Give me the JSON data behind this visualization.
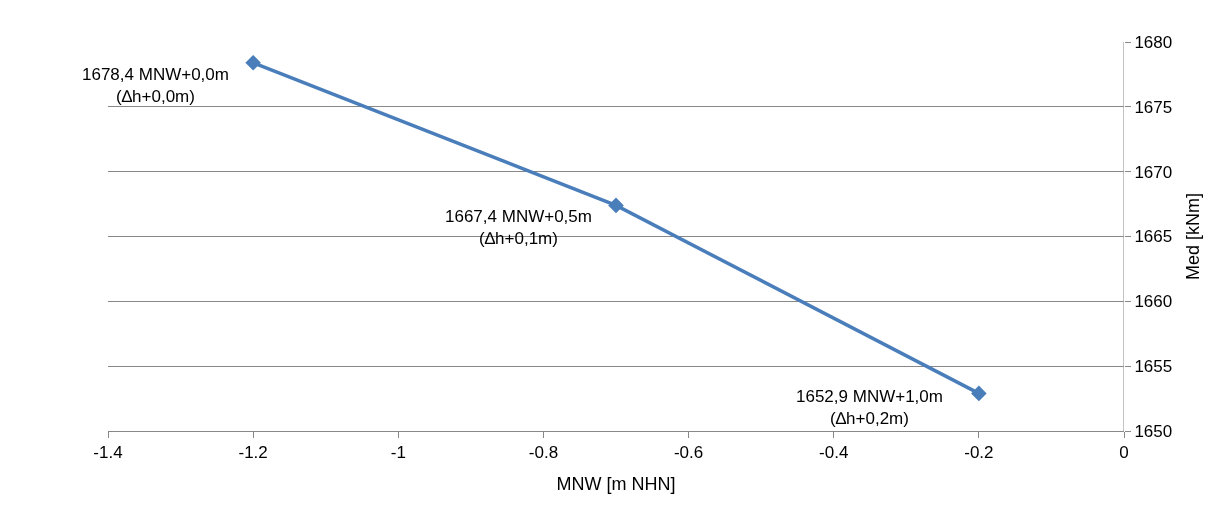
{
  "chart_data": {
    "type": "line",
    "xlabel": "MNW [m NHN]",
    "ylabel": "Med [kNm]",
    "x": [
      -1.2,
      -0.7,
      -0.2
    ],
    "series": [
      {
        "color": "#4a7ebb",
        "values": [
          1678.4,
          1667.4,
          1652.9
        ]
      }
    ],
    "xlim": [
      -1.4,
      0
    ],
    "xticks": [
      -1.4,
      -1.2,
      -1,
      -0.8,
      -0.6,
      -0.4,
      -0.2,
      0
    ],
    "ylim": [
      1650,
      1680
    ],
    "yticks": [
      1650,
      1655,
      1660,
      1665,
      1670,
      1675,
      1680
    ],
    "grid": "y",
    "marker": "diamond",
    "annotations": [
      {
        "text": "1678,4 MNW+0,0m\n(∆h+0,0m)",
        "x": -1.2,
        "y": 1678.4
      },
      {
        "text": "1667,4 MNW+0,5m\n(∆h+0,1m)",
        "x": -0.7,
        "y": 1667.4
      },
      {
        "text": "1652,9 MNW+1,0m\n(∆h+0,2m)",
        "x": -0.2,
        "y": 1652.9
      }
    ]
  }
}
